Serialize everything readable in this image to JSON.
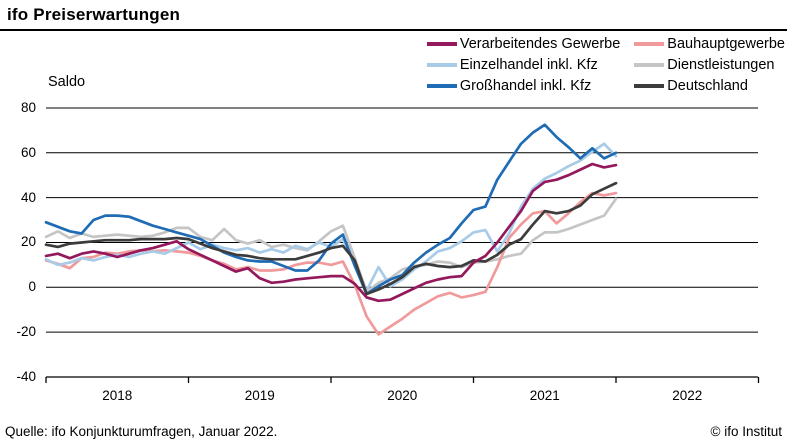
{
  "title": "ifo Preiserwartungen",
  "footer": {
    "source": "Quelle: ifo Konjunkturumfragen, Januar 2022.",
    "copyright": "© ifo Institut"
  },
  "colors": {
    "background": "#ffffff",
    "text": "#000000",
    "grid": "#000000",
    "axis": "#000000",
    "title_rule": "#000000"
  },
  "chart_data": {
    "type": "line",
    "title": "ifo Preiserwartungen",
    "ylabel": "Saldo",
    "ylim": [
      -40,
      80
    ],
    "yticks": [
      80,
      60,
      40,
      20,
      0,
      -20,
      -40
    ],
    "xtick_labels": [
      "2018",
      "2019",
      "2020",
      "2021",
      "2022"
    ],
    "x_start": "2018-01",
    "x_end": "2022-01",
    "frequency": "monthly",
    "grid": true,
    "legend_position": "top-right",
    "series": [
      {
        "name": "Verarbeitendes Gewerbe",
        "color": "#94195c",
        "values": [
          14,
          15,
          13,
          15,
          16,
          15,
          13.5,
          15,
          16.5,
          17.5,
          19,
          20.5,
          17,
          14.5,
          12,
          9.5,
          7,
          8.5,
          4,
          2,
          2.5,
          3.5,
          4,
          4.5,
          5,
          5,
          1.5,
          -4.5,
          -6,
          -5.5,
          -3,
          -0.5,
          2,
          3.5,
          4.5,
          5,
          11,
          14,
          20,
          27,
          34,
          43,
          47,
          48,
          50,
          52.5,
          55,
          53.5,
          54.5
        ]
      },
      {
        "name": "Bauhauptgewerbe",
        "color": "#f09a9b",
        "values": [
          12,
          10.5,
          8.5,
          13,
          13.5,
          15.5,
          15,
          16,
          16.5,
          16,
          16.5,
          16,
          15.5,
          14,
          12,
          10.5,
          8,
          9,
          7.5,
          7.5,
          8,
          10,
          11,
          11,
          10,
          11.5,
          1,
          -13,
          -21,
          -17.5,
          -14,
          -10,
          -7,
          -4,
          -2.5,
          -4.5,
          -3.5,
          -2,
          9,
          22,
          28,
          33,
          34,
          28.5,
          33,
          38,
          42,
          41,
          42
        ]
      },
      {
        "name": "Einzelhandel inkl. Kfz",
        "color": "#a8cbe8",
        "values": [
          12.5,
          10,
          11,
          13,
          12,
          13.5,
          14.5,
          13.5,
          15,
          16,
          15,
          17.5,
          20,
          17,
          19,
          17.5,
          16.5,
          17.5,
          15.5,
          17,
          15.5,
          18.5,
          17,
          20,
          18,
          21.5,
          10,
          -1.5,
          9,
          0.5,
          3.5,
          8,
          11.5,
          16,
          17.5,
          20.5,
          24.5,
          25.5,
          16,
          24,
          36,
          44,
          48.5,
          51,
          54,
          56.5,
          60.5,
          64,
          58.5
        ]
      },
      {
        "name": "Dienstleistungen",
        "color": "#c5c5c5",
        "values": [
          22.5,
          25,
          22,
          24,
          22.5,
          23,
          23.5,
          23,
          22.5,
          23,
          24.5,
          26.5,
          26.5,
          22.5,
          21,
          26,
          21,
          19.5,
          21,
          18,
          19,
          17.5,
          16.5,
          20.5,
          25,
          27.5,
          13,
          -2,
          2,
          4,
          8,
          9.5,
          10,
          11.5,
          11,
          9,
          11,
          11.5,
          12.5,
          14,
          15,
          21,
          24.5,
          24.5,
          26,
          28,
          30,
          32,
          39.5
        ]
      },
      {
        "name": "Großhandel inkl. Kfz",
        "color": "#1f6cb5",
        "values": [
          29,
          27,
          25,
          24,
          30,
          32,
          32,
          31.5,
          29.5,
          27.5,
          26,
          24.5,
          23,
          21.5,
          18.5,
          15.5,
          13.5,
          12,
          11.5,
          11.5,
          9.5,
          7.5,
          7.5,
          12,
          19.5,
          23.5,
          9.5,
          -3,
          0.5,
          3.5,
          5.5,
          11,
          15.5,
          19,
          22,
          28.5,
          34.5,
          36,
          48,
          56,
          64,
          69,
          72.5,
          67,
          62.5,
          57.5,
          62,
          57.5,
          60
        ]
      },
      {
        "name": "Deutschland",
        "color": "#3c3c3c",
        "values": [
          19,
          18,
          19.5,
          20,
          20.5,
          21,
          21,
          21,
          21.5,
          21.5,
          21.5,
          22,
          21.5,
          19.5,
          17.5,
          16,
          14.5,
          14,
          13,
          12.5,
          12.5,
          12.5,
          14,
          15.5,
          17.5,
          18.5,
          12,
          -3,
          -1,
          1.5,
          4.5,
          9,
          10.5,
          9.5,
          9,
          9.5,
          12,
          11.5,
          14.5,
          19,
          21.5,
          28,
          34,
          33,
          34,
          36.5,
          41.5,
          44,
          46.5
        ]
      }
    ]
  }
}
